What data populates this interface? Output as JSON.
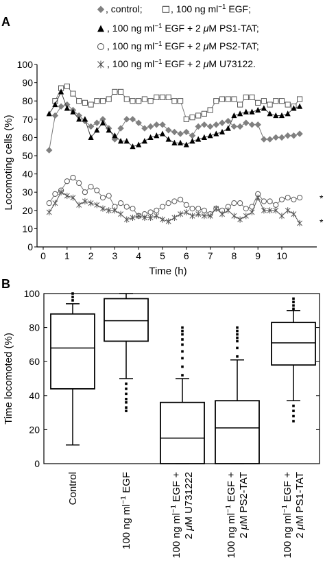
{
  "panels": {
    "a": "A",
    "b": "B"
  },
  "chart_data": [
    {
      "type": "line",
      "xlabel": "Time (h)",
      "ylabel": "Locomoting cells (%)",
      "xlim": [
        0,
        11
      ],
      "ylim": [
        0,
        100
      ],
      "xticks": [
        "0",
        "1",
        "2",
        "3",
        "4",
        "5",
        "6",
        "7",
        "8",
        "9",
        "10"
      ],
      "yticks": [
        "0",
        "10",
        "20",
        "30",
        "40",
        "50",
        "60",
        "70",
        "80",
        "90",
        "100"
      ],
      "grid": false,
      "legend_position": "top",
      "legend": [
        {
          "marker": "diamond",
          "parts": [
            ", control;  "
          ]
        },
        {
          "marker": "square",
          "parts": [
            ", 100 ng ml",
            "−1",
            " EGF;"
          ]
        },
        {
          "marker": "triangle",
          "parts": [
            ", 100 ng ml",
            "−1",
            " EGF + 2 ",
            "μ",
            "M PS1-TAT;"
          ]
        },
        {
          "marker": "circle",
          "parts": [
            ", 100 ng ml",
            "−1",
            " EGF + 2 ",
            "μ",
            "M PS2-TAT;"
          ]
        },
        {
          "marker": "asterisk",
          "parts": [
            ", 100 ng ml",
            "−1",
            " EGF + 2 ",
            "μ",
            "M U73122."
          ]
        }
      ],
      "annotations": [
        "*",
        "*"
      ],
      "series": [
        {
          "marker": "square",
          "color": "#777777",
          "x": [
            0.5,
            0.75,
            1.0,
            1.25,
            1.5,
            1.75,
            2.0,
            2.25,
            2.5,
            2.75,
            3.0,
            3.25,
            3.5,
            3.75,
            4.0,
            4.25,
            4.5,
            4.75,
            5.0,
            5.25,
            5.5,
            5.75,
            6.0,
            6.25,
            6.5,
            6.75,
            7.0,
            7.25,
            7.5,
            7.75,
            8.0,
            8.25,
            8.5,
            8.75,
            9.0,
            9.25,
            9.5,
            9.75,
            10.0,
            10.25,
            10.5,
            10.75
          ],
          "y": [
            80,
            87,
            88,
            84,
            80,
            79,
            78,
            80,
            80,
            81,
            85,
            85,
            81,
            80,
            80,
            81,
            80,
            82,
            82,
            82,
            80,
            80,
            70,
            71,
            72,
            73,
            75,
            80,
            81,
            81,
            81,
            78,
            82,
            82,
            79,
            80,
            78,
            80,
            80,
            78,
            77,
            81
          ]
        },
        {
          "marker": "diamond",
          "color": "#777777",
          "x": [
            0.25,
            0.5,
            0.75,
            1.0,
            1.25,
            1.5,
            1.75,
            2.0,
            2.25,
            2.5,
            2.75,
            3.0,
            3.25,
            3.5,
            3.75,
            4.0,
            4.25,
            4.5,
            4.75,
            5.0,
            5.25,
            5.5,
            5.75,
            6.0,
            6.25,
            6.5,
            6.75,
            7.0,
            7.25,
            7.5,
            7.75,
            8.0,
            8.25,
            8.5,
            8.75,
            9.0,
            9.25,
            9.5,
            9.75,
            10.0,
            10.25,
            10.5,
            10.75
          ],
          "y": [
            53,
            72,
            77,
            78,
            75,
            72,
            69,
            66,
            68,
            70,
            65,
            59,
            65,
            70,
            70,
            68,
            65,
            66,
            67,
            67,
            64,
            63,
            62,
            63,
            61,
            66,
            67,
            66,
            67,
            68,
            69,
            66,
            66,
            68,
            67,
            67,
            59,
            59,
            60,
            60,
            61,
            61,
            62
          ]
        },
        {
          "marker": "triangle",
          "color": "#444444",
          "x": [
            0.25,
            0.5,
            0.75,
            1.0,
            1.25,
            1.5,
            1.75,
            2.0,
            2.25,
            2.5,
            2.75,
            3.0,
            3.25,
            3.5,
            3.75,
            4.0,
            4.25,
            4.5,
            4.75,
            5.0,
            5.25,
            5.5,
            5.75,
            6.0,
            6.25,
            6.5,
            6.75,
            7.0,
            7.25,
            7.5,
            7.75,
            8.0,
            8.25,
            8.5,
            8.75,
            9.0,
            9.25,
            9.5,
            9.75,
            10.0,
            10.25,
            10.5,
            10.75
          ],
          "y": [
            73,
            78,
            85,
            76,
            74,
            70,
            70,
            60,
            64,
            68,
            64,
            61,
            58,
            58,
            55,
            56,
            58,
            60,
            61,
            62,
            59,
            57,
            57,
            56,
            58,
            59,
            60,
            61,
            62,
            63,
            65,
            72,
            73,
            74,
            74,
            75,
            76,
            73,
            72,
            72,
            73,
            76,
            77
          ]
        },
        {
          "marker": "circle",
          "color": "#777777",
          "x": [
            0.25,
            0.5,
            0.75,
            1.0,
            1.25,
            1.5,
            1.75,
            2.0,
            2.25,
            2.5,
            2.75,
            3.0,
            3.25,
            3.5,
            3.75,
            4.0,
            4.25,
            4.5,
            4.75,
            5.0,
            5.25,
            5.5,
            5.75,
            6.0,
            6.25,
            6.5,
            6.75,
            7.0,
            7.25,
            7.5,
            7.75,
            8.0,
            8.25,
            8.5,
            8.75,
            9.0,
            9.25,
            9.5,
            9.75,
            10.0,
            10.25,
            10.5,
            10.75
          ],
          "y": [
            24,
            29,
            31,
            36,
            38,
            35,
            30,
            33,
            31,
            27,
            28,
            22,
            24,
            22,
            21,
            17,
            18,
            19,
            20,
            22,
            24,
            25,
            26,
            23,
            21,
            21,
            20,
            18,
            21,
            20,
            22,
            24,
            24,
            21,
            22,
            29,
            25,
            25,
            23,
            26,
            27,
            26,
            27
          ]
        },
        {
          "marker": "asterisk",
          "color": "#555555",
          "x": [
            0.25,
            0.5,
            0.75,
            1.0,
            1.25,
            1.5,
            1.75,
            2.0,
            2.25,
            2.5,
            2.75,
            3.0,
            3.25,
            3.5,
            3.75,
            4.0,
            4.25,
            4.5,
            4.75,
            5.0,
            5.25,
            5.5,
            5.75,
            6.0,
            6.25,
            6.5,
            6.75,
            7.0,
            7.25,
            7.5,
            7.75,
            8.0,
            8.25,
            8.5,
            8.75,
            9.0,
            9.25,
            9.5,
            9.75,
            10.0,
            10.25,
            10.5,
            10.75
          ],
          "y": [
            19,
            24,
            30,
            28,
            27,
            23,
            25,
            24,
            23,
            21,
            20,
            20,
            18,
            15,
            16,
            17,
            16,
            16,
            17,
            15,
            14,
            16,
            18,
            19,
            17,
            18,
            17,
            17,
            21,
            18,
            20,
            17,
            15,
            17,
            19,
            27,
            20,
            20,
            20,
            17,
            20,
            18,
            13
          ]
        }
      ]
    },
    {
      "type": "box",
      "ylabel": "Time locomoted (%)",
      "ylim": [
        0,
        100
      ],
      "yticks": [
        "0",
        "20",
        "40",
        "60",
        "80",
        "100"
      ],
      "grid": false,
      "categories": [
        {
          "lines": [
            {
              "parts": [
                "Control"
              ]
            }
          ]
        },
        {
          "lines": [
            {
              "parts": [
                "100 ng ml",
                "−1",
                " EGF"
              ]
            }
          ]
        },
        {
          "lines": [
            {
              "parts": [
                "100 ng ml",
                "−1",
                " EGF +"
              ]
            },
            {
              "parts": [
                "2 ",
                "μ",
                "M U731222"
              ]
            }
          ]
        },
        {
          "lines": [
            {
              "parts": [
                "100 ng ml",
                "−1",
                " EGF +"
              ]
            },
            {
              "parts": [
                "2 ",
                "μ",
                "M PS2-TAT"
              ]
            }
          ]
        },
        {
          "lines": [
            {
              "parts": [
                "100 ng ml",
                "−1",
                " EGF +"
              ]
            },
            {
              "parts": [
                "2 ",
                "μ",
                "M PS1-TAT"
              ]
            }
          ]
        }
      ],
      "boxes": [
        {
          "whisker_low": 11,
          "q1": 44,
          "median": 68,
          "q3": 88,
          "whisker_high": 94,
          "outliers": [
            96,
            98,
            100
          ]
        },
        {
          "whisker_low": 50,
          "q1": 72,
          "median": 84,
          "q3": 97,
          "whisker_high": 100,
          "outliers": [
            31,
            33,
            36,
            38,
            41,
            44,
            47
          ]
        },
        {
          "whisker_low": 0,
          "q1": 0,
          "median": 15,
          "q3": 36,
          "whisker_high": 50,
          "outliers": [
            52,
            57,
            62,
            66,
            70,
            73,
            76,
            78,
            80
          ]
        },
        {
          "whisker_low": 0,
          "q1": 0,
          "median": 21,
          "q3": 37,
          "whisker_high": 61,
          "outliers": [
            63,
            68,
            72,
            74,
            76,
            78,
            80
          ]
        },
        {
          "whisker_low": 37,
          "q1": 58,
          "median": 71,
          "q3": 83,
          "whisker_high": 90,
          "outliers": [
            25,
            28,
            31,
            34,
            91,
            93,
            95,
            97
          ]
        }
      ]
    }
  ]
}
